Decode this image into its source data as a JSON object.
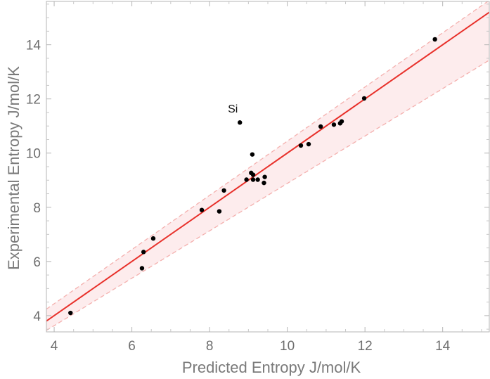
{
  "chart_data": {
    "type": "scatter",
    "title": "",
    "xlabel": "Predicted Entropy J/mol/K",
    "ylabel": "Experimental Entropy J/mol/K",
    "xlim": [
      3.8,
      15.2
    ],
    "ylim": [
      3.4,
      15.6
    ],
    "x_ticks": [
      4,
      6,
      8,
      10,
      12,
      14
    ],
    "y_ticks": [
      4,
      6,
      8,
      10,
      12,
      14
    ],
    "grid": false,
    "fit_line": {
      "slope": 1.0,
      "intercept": 0.0,
      "color": "#e8302a"
    },
    "band_upper": {
      "slope": 1.0,
      "intercept": 0.44,
      "color": "#f4b0ae"
    },
    "band_lower": {
      "slope": 0.875,
      "intercept": 0.13,
      "color": "#f4b0ae"
    },
    "band_fill": "#fdeced",
    "point_color": "#000000",
    "points": [
      {
        "x": 4.42,
        "y": 4.1
      },
      {
        "x": 6.26,
        "y": 5.75
      },
      {
        "x": 6.3,
        "y": 6.35
      },
      {
        "x": 6.55,
        "y": 6.85
      },
      {
        "x": 7.8,
        "y": 7.9
      },
      {
        "x": 8.25,
        "y": 7.85
      },
      {
        "x": 8.37,
        "y": 8.62
      },
      {
        "x": 8.78,
        "y": 11.13
      },
      {
        "x": 8.95,
        "y": 9.02
      },
      {
        "x": 9.07,
        "y": 9.27
      },
      {
        "x": 9.1,
        "y": 9.95
      },
      {
        "x": 9.12,
        "y": 9.2
      },
      {
        "x": 9.12,
        "y": 9.02
      },
      {
        "x": 9.24,
        "y": 9.02
      },
      {
        "x": 9.4,
        "y": 8.9
      },
      {
        "x": 9.42,
        "y": 9.12
      },
      {
        "x": 10.35,
        "y": 10.28
      },
      {
        "x": 10.55,
        "y": 10.33
      },
      {
        "x": 10.86,
        "y": 10.98
      },
      {
        "x": 11.2,
        "y": 11.05
      },
      {
        "x": 11.36,
        "y": 11.1
      },
      {
        "x": 11.4,
        "y": 11.17
      },
      {
        "x": 11.98,
        "y": 12.02
      },
      {
        "x": 13.8,
        "y": 14.2
      }
    ],
    "annotations": [
      {
        "text": "Si",
        "x": 8.78,
        "y": 11.13
      }
    ]
  }
}
